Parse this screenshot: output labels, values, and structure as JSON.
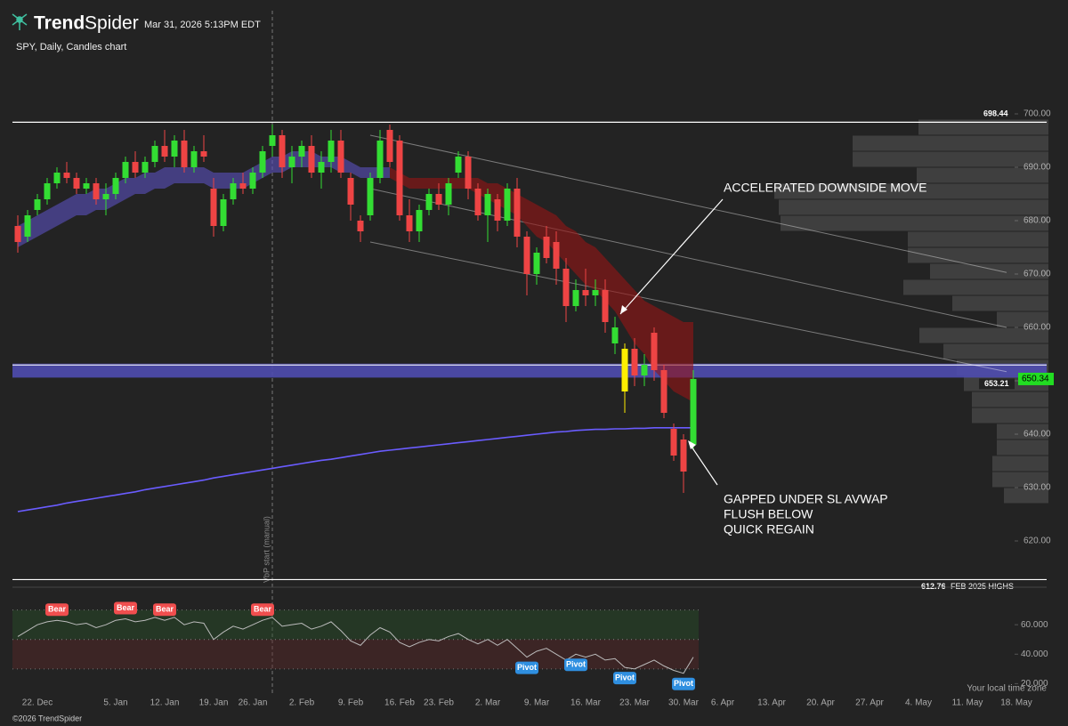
{
  "header": {
    "logo_bold": "Trend",
    "logo_light": "Spider",
    "timestamp": "Mar 31, 2026 5:13PM EDT",
    "timezone_note": "Your local time zone",
    "copyright": "©2026 TrendSpider"
  },
  "chart_data": {
    "type": "candlestick",
    "title": "SPY, Daily, Candles chart",
    "categories": [
      null,
      null,
      "22. Dec",
      null,
      null,
      null,
      null,
      null,
      null,
      null,
      "5. Jan",
      null,
      null,
      null,
      null,
      "12. Jan",
      null,
      null,
      null,
      null,
      "19. Jan",
      null,
      null,
      null,
      "26. Jan",
      null,
      null,
      null,
      null,
      "2. Feb",
      null,
      null,
      null,
      null,
      "9. Feb",
      null,
      null,
      null,
      null,
      "16. Feb",
      null,
      null,
      null,
      "23. Feb",
      null,
      null,
      null,
      null,
      "2. Mar",
      null,
      null,
      null,
      null,
      "9. Mar",
      null,
      null,
      null,
      null,
      "16. Mar",
      null,
      null,
      null,
      null,
      "23. Mar",
      null,
      null,
      null,
      null,
      "30. Mar",
      null,
      null,
      null,
      "6. Apr",
      null,
      null,
      null,
      null,
      "13. Apr",
      null,
      null,
      null,
      null,
      "20. Apr",
      null,
      null,
      null,
      null,
      "27. Apr",
      null,
      null,
      null,
      null,
      "4. May",
      null,
      null,
      null,
      null,
      "11. May",
      null,
      null,
      null,
      null,
      "18. May"
    ],
    "open": [
      679,
      677,
      682,
      684,
      687,
      689,
      688,
      686,
      687,
      684,
      685,
      688,
      691,
      689,
      691,
      694,
      692,
      695,
      690,
      693,
      686,
      679,
      684,
      687,
      686,
      689,
      694,
      696,
      690,
      692,
      694,
      689,
      691,
      695,
      688,
      680,
      681,
      688,
      697,
      695,
      681,
      678,
      682,
      685,
      683,
      689,
      692,
      686,
      681,
      684,
      680,
      686,
      677,
      670,
      677,
      676,
      671,
      664,
      667,
      666,
      667,
      657,
      656,
      656,
      651,
      659,
      652,
      641,
      639,
      638,
      null,
      null,
      null,
      null,
      null,
      null,
      null,
      null,
      null,
      null,
      null,
      null,
      null,
      null,
      null,
      null,
      null,
      null,
      null,
      null,
      null,
      null,
      null,
      null,
      null,
      null,
      null,
      null,
      null,
      null,
      null,
      null,
      null
    ],
    "high": [
      681,
      682,
      685,
      688,
      690,
      691,
      689,
      688,
      688,
      687,
      689,
      692,
      693,
      692,
      695,
      697,
      696,
      697,
      694,
      696,
      688,
      685,
      688,
      689,
      690,
      694,
      698,
      697,
      694,
      695,
      696,
      693,
      697,
      697,
      689,
      681,
      689,
      697,
      698,
      696,
      684,
      683,
      686,
      687,
      688,
      693,
      693,
      687,
      686,
      685,
      687,
      688,
      678,
      675,
      679,
      678,
      673,
      669,
      671,
      669,
      669,
      662,
      657,
      658,
      655,
      660,
      653,
      642,
      640,
      652,
      null,
      null,
      null,
      null,
      null,
      null,
      null,
      null,
      null,
      null,
      null,
      null,
      null,
      null,
      null,
      null,
      null,
      null,
      null,
      null,
      null,
      null,
      null,
      null,
      null,
      null,
      null,
      null,
      null,
      null,
      null,
      null,
      null
    ],
    "low": [
      674,
      676,
      681,
      683,
      686,
      687,
      685,
      685,
      683,
      681,
      684,
      687,
      688,
      688,
      690,
      691,
      690,
      689,
      689,
      691,
      677,
      678,
      683,
      685,
      685,
      688,
      692,
      688,
      687,
      690,
      688,
      686,
      689,
      688,
      680,
      676,
      680,
      687,
      690,
      680,
      676,
      676,
      681,
      682,
      681,
      688,
      684,
      680,
      676,
      678,
      679,
      675,
      666,
      668,
      672,
      668,
      661,
      663,
      664,
      664,
      659,
      655,
      644,
      649,
      649,
      650,
      643,
      635,
      629,
      637,
      null,
      null,
      null,
      null,
      null,
      null,
      null,
      null,
      null,
      null,
      null,
      null,
      null,
      null,
      null,
      null,
      null,
      null,
      null,
      null,
      null,
      null,
      null,
      null,
      null,
      null,
      null,
      null,
      null,
      null,
      null,
      null,
      null
    ],
    "close": [
      676,
      681,
      684,
      687,
      689,
      688,
      686,
      687,
      684,
      685,
      688,
      691,
      689,
      691,
      694,
      692,
      695,
      690,
      693,
      692,
      679,
      684,
      687,
      686,
      689,
      693,
      696,
      690,
      692,
      694,
      689,
      691,
      695,
      689,
      683,
      678,
      688,
      695,
      691,
      681,
      678,
      682,
      685,
      683,
      687,
      692,
      686,
      681,
      685,
      680,
      686,
      677,
      670,
      674,
      673,
      671,
      664,
      667,
      666,
      667,
      661,
      660,
      648,
      651,
      653,
      652,
      644,
      636,
      633,
      650.34,
      null,
      null,
      null,
      null,
      null,
      null,
      null,
      null,
      null,
      null,
      null,
      null,
      null,
      null,
      null,
      null,
      null,
      null,
      null,
      null,
      null,
      null,
      null,
      null,
      null,
      null,
      null,
      null,
      null,
      null,
      null,
      null,
      null
    ],
    "up_color": "#33dd33",
    "down_color": "#ee4444",
    "highlight": {
      "index": 62,
      "color": "#ffee00"
    },
    "ylim": [
      612,
      708
    ],
    "yticks": [
      {
        "value": 620,
        "label": "620.00"
      },
      {
        "value": 630,
        "label": "630.00"
      },
      {
        "value": 640,
        "label": "640.00"
      },
      {
        "value": 650,
        "label": "650.00"
      },
      {
        "value": 660,
        "label": "660.00"
      },
      {
        "value": 670,
        "label": "670.00"
      },
      {
        "value": 680,
        "label": "680.00"
      },
      {
        "value": 690,
        "label": "690.00"
      },
      {
        "value": 700,
        "label": "700.00"
      }
    ],
    "clouds": [
      {
        "color": "rgba(90,80,190,0.6)",
        "upper": [
          679,
          680,
          681,
          682,
          683,
          684,
          685,
          685,
          686,
          686,
          687,
          688,
          688,
          689,
          689,
          690,
          690,
          690,
          690,
          690,
          689,
          689,
          689,
          689,
          690,
          691,
          692,
          692,
          693,
          693,
          693,
          692,
          692,
          692,
          691,
          690,
          690,
          690,
          690,
          null,
          null,
          null,
          null,
          null,
          null,
          null,
          null,
          null,
          null,
          null,
          null,
          null,
          null,
          null,
          null,
          null,
          null,
          null,
          null,
          null,
          null,
          null,
          null,
          null,
          null,
          null,
          null,
          null,
          null,
          null,
          null,
          null,
          null,
          null,
          null,
          null,
          null,
          null,
          null,
          null,
          null,
          null,
          null,
          null,
          null,
          null,
          null,
          null,
          null,
          null,
          null,
          null,
          null,
          null,
          null,
          null,
          null,
          null,
          null,
          null,
          null,
          null,
          null
        ],
        "lower": [
          675,
          676,
          677,
          678,
          679,
          680,
          681,
          681,
          682,
          682,
          683,
          684,
          685,
          685,
          686,
          686,
          687,
          687,
          687,
          687,
          686,
          686,
          686,
          686,
          687,
          688,
          689,
          689,
          690,
          690,
          690,
          690,
          690,
          689,
          689,
          688,
          688,
          688,
          688,
          null,
          null,
          null,
          null,
          null,
          null,
          null,
          null,
          null,
          null,
          null,
          null,
          null,
          null,
          null,
          null,
          null,
          null,
          null,
          null,
          null,
          null,
          null,
          null,
          null,
          null,
          null,
          null,
          null,
          null,
          null,
          null,
          null,
          null,
          null,
          null,
          null,
          null,
          null,
          null,
          null,
          null,
          null,
          null,
          null,
          null,
          null,
          null,
          null,
          null,
          null,
          null,
          null,
          null,
          null,
          null,
          null,
          null,
          null,
          null,
          null,
          null,
          null,
          null
        ]
      },
      {
        "color": "rgba(150,20,20,0.6)",
        "upper": [
          null,
          null,
          null,
          null,
          null,
          null,
          null,
          null,
          null,
          null,
          null,
          null,
          null,
          null,
          null,
          null,
          null,
          null,
          null,
          null,
          null,
          null,
          null,
          null,
          null,
          null,
          null,
          null,
          null,
          null,
          null,
          null,
          null,
          null,
          null,
          null,
          null,
          null,
          690,
          689,
          688,
          688,
          688,
          688,
          688,
          688,
          688,
          688,
          687,
          687,
          686,
          685,
          684,
          683,
          682,
          681,
          679,
          678,
          676,
          675,
          673,
          671,
          669,
          667,
          665,
          664,
          663,
          662,
          661,
          661,
          null,
          null,
          null,
          null,
          null,
          null,
          null,
          null,
          null,
          null,
          null,
          null,
          null,
          null,
          null,
          null,
          null,
          null,
          null,
          null,
          null,
          null,
          null,
          null,
          null,
          null,
          null,
          null,
          null,
          null,
          null,
          null,
          null
        ],
        "lower": [
          null,
          null,
          null,
          null,
          null,
          null,
          null,
          null,
          null,
          null,
          null,
          null,
          null,
          null,
          null,
          null,
          null,
          null,
          null,
          null,
          null,
          null,
          null,
          null,
          null,
          null,
          null,
          null,
          null,
          null,
          null,
          null,
          null,
          null,
          null,
          null,
          null,
          null,
          688,
          687,
          686,
          686,
          686,
          686,
          686,
          686,
          686,
          685,
          684,
          683,
          682,
          681,
          679,
          677,
          676,
          674,
          672,
          670,
          668,
          667,
          665,
          663,
          660,
          657,
          655,
          652,
          650,
          648,
          647,
          646,
          null,
          null,
          null,
          null,
          null,
          null,
          null,
          null,
          null,
          null,
          null,
          null,
          null,
          null,
          null,
          null,
          null,
          null,
          null,
          null,
          null,
          null,
          null,
          null,
          null,
          null,
          null,
          null,
          null,
          null,
          null,
          null,
          null
        ]
      }
    ],
    "avwap": {
      "color": "#6a5cff",
      "values": [
        625.5,
        625.8,
        626.1,
        626.4,
        626.7,
        627.1,
        627.4,
        627.7,
        628.0,
        628.3,
        628.6,
        628.9,
        629.2,
        629.6,
        629.9,
        630.2,
        630.5,
        630.8,
        631.1,
        631.4,
        631.8,
        632.1,
        632.4,
        632.7,
        633.0,
        633.3,
        633.6,
        633.9,
        634.2,
        634.5,
        634.8,
        635.1,
        635.3,
        635.6,
        635.9,
        636.2,
        636.5,
        636.8,
        637.0,
        637.2,
        637.4,
        637.6,
        637.8,
        638.0,
        638.2,
        638.4,
        638.6,
        638.8,
        639.0,
        639.2,
        639.4,
        639.6,
        639.8,
        640.0,
        640.2,
        640.4,
        640.5,
        640.7,
        640.8,
        640.9,
        640.9,
        641.0,
        641.0,
        641.1,
        641.1,
        641.2,
        641.2,
        641.2,
        641.2,
        641.2,
        null,
        null,
        null,
        null,
        null,
        null,
        null,
        null,
        null,
        null,
        null,
        null,
        null,
        null,
        null,
        null,
        null,
        null,
        null,
        null,
        null,
        null,
        null,
        null,
        null,
        null,
        null,
        null,
        null,
        null,
        null,
        null,
        null
      ]
    },
    "channel": [
      {
        "x": [
          36,
          101
        ],
        "y": [
          696,
          670.3
        ]
      },
      {
        "x": [
          36,
          101
        ],
        "y": [
          686,
          660
        ]
      },
      {
        "x": [
          36,
          101
        ],
        "y": [
          676,
          651.7
        ]
      }
    ],
    "levels": [
      {
        "value": 698.44
      },
      {
        "value": 612.76,
        "note": "FEB 2025 HIGHS"
      }
    ],
    "zone": [
      650.6,
      653.21
    ],
    "volume_profile": {
      "bins": [
        627,
        630,
        633,
        636,
        639,
        642,
        645,
        648,
        651,
        654,
        657,
        660,
        663,
        666,
        669,
        672,
        675,
        678,
        681,
        684,
        687,
        690,
        693,
        696,
        699
      ],
      "values": [
        50,
        63,
        63,
        58,
        58,
        86,
        86,
        95,
        103,
        118,
        145,
        58,
        108,
        163,
        133,
        158,
        158,
        301,
        303,
        308,
        148,
        220,
        220,
        146
      ]
    },
    "vbp_start": {
      "index": 26,
      "label": "VbP start (manual)"
    },
    "annotations": [
      "ACCELERATED DOWNSIDE MOVE",
      "GAPPED UNDER SL AVWAP",
      "FLUSH BELOW",
      "QUICK REGAIN"
    ],
    "rsi": {
      "values": [
        52,
        56,
        60,
        62,
        63,
        62,
        60,
        61,
        58,
        60,
        63,
        64,
        62,
        63,
        65,
        63,
        65,
        60,
        62,
        61,
        50,
        55,
        59,
        57,
        60,
        63,
        65,
        59,
        60,
        61,
        57,
        59,
        62,
        56,
        49,
        46,
        53,
        58,
        55,
        48,
        45,
        48,
        50,
        49,
        52,
        54,
        50,
        47,
        50,
        46,
        50,
        44,
        38,
        42,
        44,
        40,
        36,
        40,
        38,
        40,
        36,
        37,
        31,
        30,
        33,
        36,
        32,
        29,
        27,
        38,
        null,
        null,
        null,
        null,
        null,
        null,
        null,
        null,
        null,
        null,
        null,
        null,
        null,
        null,
        null,
        null,
        null,
        null,
        null,
        null,
        null,
        null,
        null,
        null,
        null,
        null,
        null,
        null,
        null,
        null,
        null,
        null,
        null
      ],
      "ylim": [
        16,
        74
      ],
      "yticks": [
        {
          "value": 60,
          "label": "60.000"
        },
        {
          "value": 40,
          "label": "40.000"
        },
        {
          "value": 20,
          "label": "20.000"
        }
      ],
      "bands": [
        {
          "range": [
            50,
            70
          ],
          "color": "rgba(40,80,40,0.45)"
        },
        {
          "range": [
            30,
            50
          ],
          "color": "rgba(90,40,40,0.45)"
        }
      ],
      "signals": [
        {
          "label": "Bear",
          "index": 4
        },
        {
          "label": "Bear",
          "index": 11
        },
        {
          "label": "Bear",
          "index": 15
        },
        {
          "label": "Bear",
          "index": 25
        },
        {
          "label": "Pivot",
          "index": 52
        },
        {
          "label": "Pivot",
          "index": 57
        },
        {
          "label": "Pivot",
          "index": 62
        },
        {
          "label": "Pivot",
          "index": 68
        }
      ]
    }
  }
}
